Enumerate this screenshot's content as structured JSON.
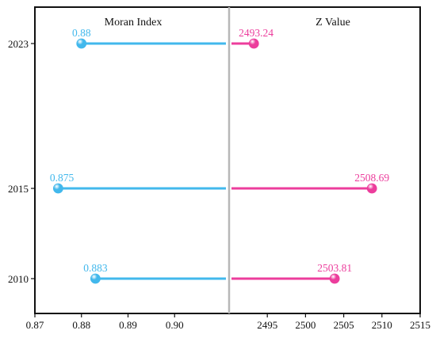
{
  "chart_data": {
    "type": "lollipop",
    "categories": [
      "2023",
      "2015",
      "2010"
    ],
    "panels": [
      {
        "title": "Moran Index",
        "axis_range": [
          0.87,
          0.91
        ],
        "ticks": [
          {
            "value": 0.87,
            "label": "0.87"
          },
          {
            "value": 0.88,
            "label": "0.88"
          },
          {
            "value": 0.89,
            "label": "0.89"
          },
          {
            "value": 0.9,
            "label": "0.90"
          }
        ],
        "color": "#42b8ec",
        "points": [
          {
            "category": "2023",
            "value": 0.88,
            "label": "0.88"
          },
          {
            "category": "2015",
            "value": 0.875,
            "label": "0.875"
          },
          {
            "category": "2010",
            "value": 0.883,
            "label": "0.883"
          }
        ]
      },
      {
        "title": "Z Value",
        "axis_range": [
          2490,
          2515
        ],
        "ticks": [
          {
            "value": 2495,
            "label": "2495"
          },
          {
            "value": 2500,
            "label": "2500"
          },
          {
            "value": 2505,
            "label": "2505"
          },
          {
            "value": 2510,
            "label": "2510"
          },
          {
            "value": 2515,
            "label": "2515"
          }
        ],
        "color": "#ec3d9c",
        "points": [
          {
            "category": "2023",
            "value": 2493.24,
            "label": "2493.24"
          },
          {
            "category": "2015",
            "value": 2508.69,
            "label": "2508.69"
          },
          {
            "category": "2010",
            "value": 2503.81,
            "label": "2503.81"
          }
        ]
      }
    ],
    "divider_color": "#b7b7b7"
  }
}
